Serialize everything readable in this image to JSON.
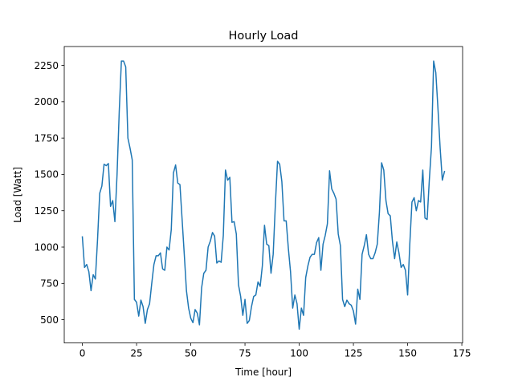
{
  "chart_data": {
    "type": "line",
    "title": "Hourly Load",
    "xlabel": "Time [hour]",
    "ylabel": "Load [Watt]",
    "xlim": [
      -8.35,
      175.35
    ],
    "ylim": [
      340,
      2380
    ],
    "xticks": [
      0,
      25,
      50,
      75,
      100,
      125,
      150,
      175
    ],
    "yticks": [
      500,
      750,
      1000,
      1250,
      1500,
      1750,
      2000,
      2250
    ],
    "grid": false,
    "legend": "none",
    "series": [
      {
        "color": "#1f77b4",
        "x": [
          0,
          1,
          2,
          3,
          4,
          5,
          6,
          7,
          8,
          9,
          10,
          11,
          12,
          13,
          14,
          15,
          16,
          17,
          18,
          19,
          20,
          21,
          22,
          23,
          24,
          25,
          26,
          27,
          28,
          29,
          30,
          31,
          32,
          33,
          34,
          35,
          36,
          37,
          38,
          39,
          40,
          41,
          42,
          43,
          44,
          45,
          46,
          47,
          48,
          49,
          50,
          51,
          52,
          53,
          54,
          55,
          56,
          57,
          58,
          59,
          60,
          61,
          62,
          63,
          64,
          65,
          66,
          67,
          68,
          69,
          70,
          71,
          72,
          73,
          74,
          75,
          76,
          77,
          78,
          79,
          80,
          81,
          82,
          83,
          84,
          85,
          86,
          87,
          88,
          89,
          90,
          91,
          92,
          93,
          94,
          95,
          96,
          97,
          98,
          99,
          100,
          101,
          102,
          103,
          104,
          105,
          106,
          107,
          108,
          109,
          110,
          111,
          112,
          113,
          114,
          115,
          116,
          117,
          118,
          119,
          120,
          121,
          122,
          123,
          124,
          125,
          126,
          127,
          128,
          129,
          130,
          131,
          132,
          133,
          134,
          135,
          136,
          137,
          138,
          139,
          140,
          141,
          142,
          143,
          144,
          145,
          146,
          147,
          148,
          149,
          150,
          151,
          152,
          153,
          154,
          155,
          156,
          157,
          158,
          159,
          160,
          161,
          162,
          163,
          164,
          165,
          166,
          167
        ],
        "y": [
          1070,
          860,
          880,
          830,
          700,
          810,
          780,
          1050,
          1370,
          1420,
          1570,
          1560,
          1575,
          1280,
          1320,
          1175,
          1500,
          1930,
          2280,
          2280,
          2240,
          1750,
          1680,
          1600,
          640,
          620,
          525,
          635,
          590,
          475,
          570,
          610,
          750,
          880,
          940,
          940,
          960,
          850,
          840,
          1000,
          980,
          1120,
          1510,
          1565,
          1440,
          1430,
          1190,
          950,
          700,
          580,
          510,
          480,
          570,
          545,
          465,
          720,
          820,
          840,
          1000,
          1040,
          1100,
          1075,
          890,
          905,
          895,
          1080,
          1530,
          1460,
          1480,
          1170,
          1175,
          1090,
          740,
          660,
          530,
          640,
          475,
          495,
          590,
          660,
          670,
          760,
          730,
          870,
          1150,
          1020,
          1010,
          820,
          950,
          1290,
          1590,
          1570,
          1450,
          1180,
          1180,
          990,
          830,
          580,
          670,
          610,
          435,
          580,
          530,
          790,
          870,
          930,
          950,
          950,
          1030,
          1065,
          840,
          1020,
          1080,
          1160,
          1525,
          1400,
          1370,
          1330,
          1090,
          1010,
          640,
          590,
          635,
          610,
          600,
          560,
          470,
          710,
          640,
          950,
          1010,
          1085,
          950,
          920,
          920,
          960,
          1020,
          1240,
          1580,
          1530,
          1320,
          1230,
          1215,
          1040,
          920,
          1035,
          960,
          860,
          880,
          840,
          670,
          1020,
          1310,
          1340,
          1250,
          1320,
          1310,
          1530,
          1200,
          1190,
          1460,
          1690,
          2280,
          2200,
          1950,
          1680,
          1460,
          1520
        ]
      }
    ]
  }
}
